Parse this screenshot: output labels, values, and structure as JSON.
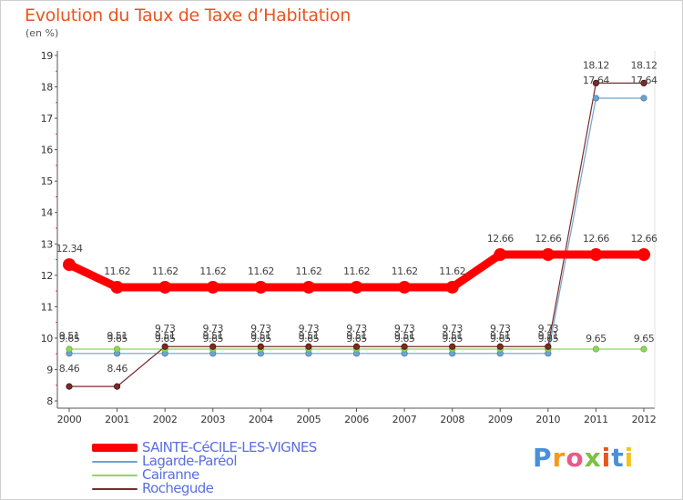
{
  "chart_data": {
    "type": "line",
    "title": "Evolution du Taux de Taxe d’Habitation",
    "subtitle": "(en %)",
    "xlabel": "",
    "ylabel": "",
    "ylim": [
      8,
      19
    ],
    "y_ticks": [
      8,
      9,
      10,
      11,
      12,
      13,
      14,
      15,
      16,
      17,
      18,
      19
    ],
    "categories": [
      "2000",
      "2001",
      "2002",
      "2003",
      "2004",
      "2005",
      "2006",
      "2007",
      "2008",
      "2009",
      "2010",
      "2011",
      "2012"
    ],
    "grid": false,
    "legend_position": "bottom-left",
    "series": [
      {
        "name": "SAINTE-CéCILE-LES-VIGNES",
        "color": "#ff0000",
        "values": [
          12.34,
          11.62,
          11.62,
          11.62,
          11.62,
          11.62,
          11.62,
          11.62,
          11.62,
          12.66,
          12.66,
          12.66,
          12.66
        ],
        "labels": [
          "12.34",
          "11.62",
          "11.62",
          "11.62",
          "11.62",
          "11.62",
          "11.62",
          "11.62",
          "11.62",
          "12.66",
          "12.66",
          "12.66",
          "12.66"
        ]
      },
      {
        "name": "Lagarde-Paréol",
        "color": "#6fa3cf",
        "values": [
          9.51,
          9.51,
          9.51,
          9.51,
          9.51,
          9.51,
          9.51,
          9.51,
          9.51,
          9.51,
          9.51,
          17.64,
          17.64
        ],
        "labels": [
          "9.51",
          "9.51",
          "9.51",
          "9.51",
          "9.51",
          "9.51",
          "9.51",
          "9.51",
          "9.51",
          "9.51",
          "9.51",
          "17.64",
          "17.64"
        ]
      },
      {
        "name": "Cairanne",
        "color": "#8fd65a",
        "values": [
          9.65,
          9.65,
          9.65,
          9.65,
          9.65,
          9.65,
          9.65,
          9.65,
          9.65,
          9.65,
          9.65,
          9.65,
          9.65
        ],
        "labels": [
          "9.65",
          "9.65",
          "9.65",
          "9.65",
          "9.65",
          "9.65",
          "9.65",
          "9.65",
          "9.65",
          "9.65",
          "9.65",
          "9.65",
          "9.65"
        ]
      },
      {
        "name": "Rochegude",
        "color": "#7a2b2b",
        "values": [
          8.46,
          8.46,
          9.73,
          9.73,
          9.73,
          9.73,
          9.73,
          9.73,
          9.73,
          9.73,
          9.73,
          18.12,
          18.12
        ],
        "labels": [
          "8.46",
          "8.46",
          "9.73",
          "9.73",
          "9.73",
          "9.73",
          "9.73",
          "9.73",
          "9.73",
          "9.73",
          "9.73",
          "18.12",
          "18.12"
        ]
      }
    ]
  },
  "brand": {
    "text": "Proxiti",
    "letters": [
      {
        "char": "P",
        "color": "#4a90d9"
      },
      {
        "char": "r",
        "color": "#f39a1e"
      },
      {
        "char": "o",
        "color": "#e85a8a"
      },
      {
        "char": "x",
        "color": "#7cc242"
      },
      {
        "char": "i",
        "color": "#e8551f"
      },
      {
        "char": "t",
        "color": "#4a90d9"
      },
      {
        "char": "i",
        "color": "#f3c31e"
      }
    ]
  }
}
